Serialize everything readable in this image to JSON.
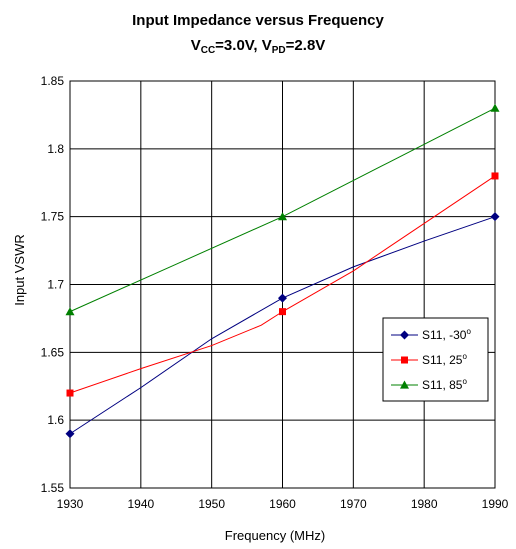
{
  "chart_data": {
    "type": "line",
    "title": "Input Impedance versus Frequency",
    "subtitle": {
      "vcc_main": "V",
      "vcc_sub": "CC",
      "vcc_value": "=3.0V, ",
      "vpd_main": "V",
      "vpd_sub": "PD",
      "vpd_value": "=2.8V"
    },
    "xlabel": "Frequency (MHz)",
    "ylabel": "Input VSWR",
    "xlim": [
      1930,
      1990
    ],
    "ylim": [
      1.55,
      1.85
    ],
    "xticks": [
      1930,
      1940,
      1950,
      1960,
      1970,
      1980,
      1990
    ],
    "yticks": [
      1.55,
      1.6,
      1.65,
      1.7,
      1.75,
      1.8,
      1.85
    ],
    "xtick_labels": [
      "1930",
      "1940",
      "1950",
      "1960",
      "1970",
      "1980",
      "1990"
    ],
    "ytick_labels": [
      "1.55",
      "1.6",
      "1.65",
      "1.7",
      "1.75",
      "1.8",
      "1.85"
    ],
    "grid": true,
    "legend_position": "right",
    "series": [
      {
        "name_main": "S11, -30",
        "name_sup": "o",
        "color": "#000080",
        "marker": "diamond",
        "points": [
          [
            1930,
            1.59
          ],
          [
            1960,
            1.69
          ],
          [
            1990,
            1.75
          ]
        ],
        "curve": [
          [
            1930,
            1.59
          ],
          [
            1940,
            1.624
          ],
          [
            1950,
            1.66
          ],
          [
            1960,
            1.69
          ],
          [
            1970,
            1.713
          ],
          [
            1980,
            1.732
          ],
          [
            1990,
            1.75
          ]
        ]
      },
      {
        "name_main": "S11, 25",
        "name_sup": "o",
        "color": "#ff0000",
        "marker": "square",
        "points": [
          [
            1930,
            1.62
          ],
          [
            1960,
            1.68
          ],
          [
            1990,
            1.78
          ]
        ],
        "curve": [
          [
            1930,
            1.62
          ],
          [
            1940,
            1.638
          ],
          [
            1950,
            1.655
          ],
          [
            1957,
            1.67
          ],
          [
            1960,
            1.68
          ],
          [
            1970,
            1.71
          ],
          [
            1980,
            1.745
          ],
          [
            1990,
            1.78
          ]
        ]
      },
      {
        "name_main": "S11, 85",
        "name_sup": "o",
        "color": "#008000",
        "marker": "triangle",
        "points": [
          [
            1930,
            1.68
          ],
          [
            1960,
            1.75
          ],
          [
            1990,
            1.83
          ]
        ],
        "curve": [
          [
            1930,
            1.68
          ],
          [
            1945,
            1.715
          ],
          [
            1960,
            1.75
          ],
          [
            1975,
            1.79
          ],
          [
            1990,
            1.83
          ]
        ]
      }
    ]
  }
}
